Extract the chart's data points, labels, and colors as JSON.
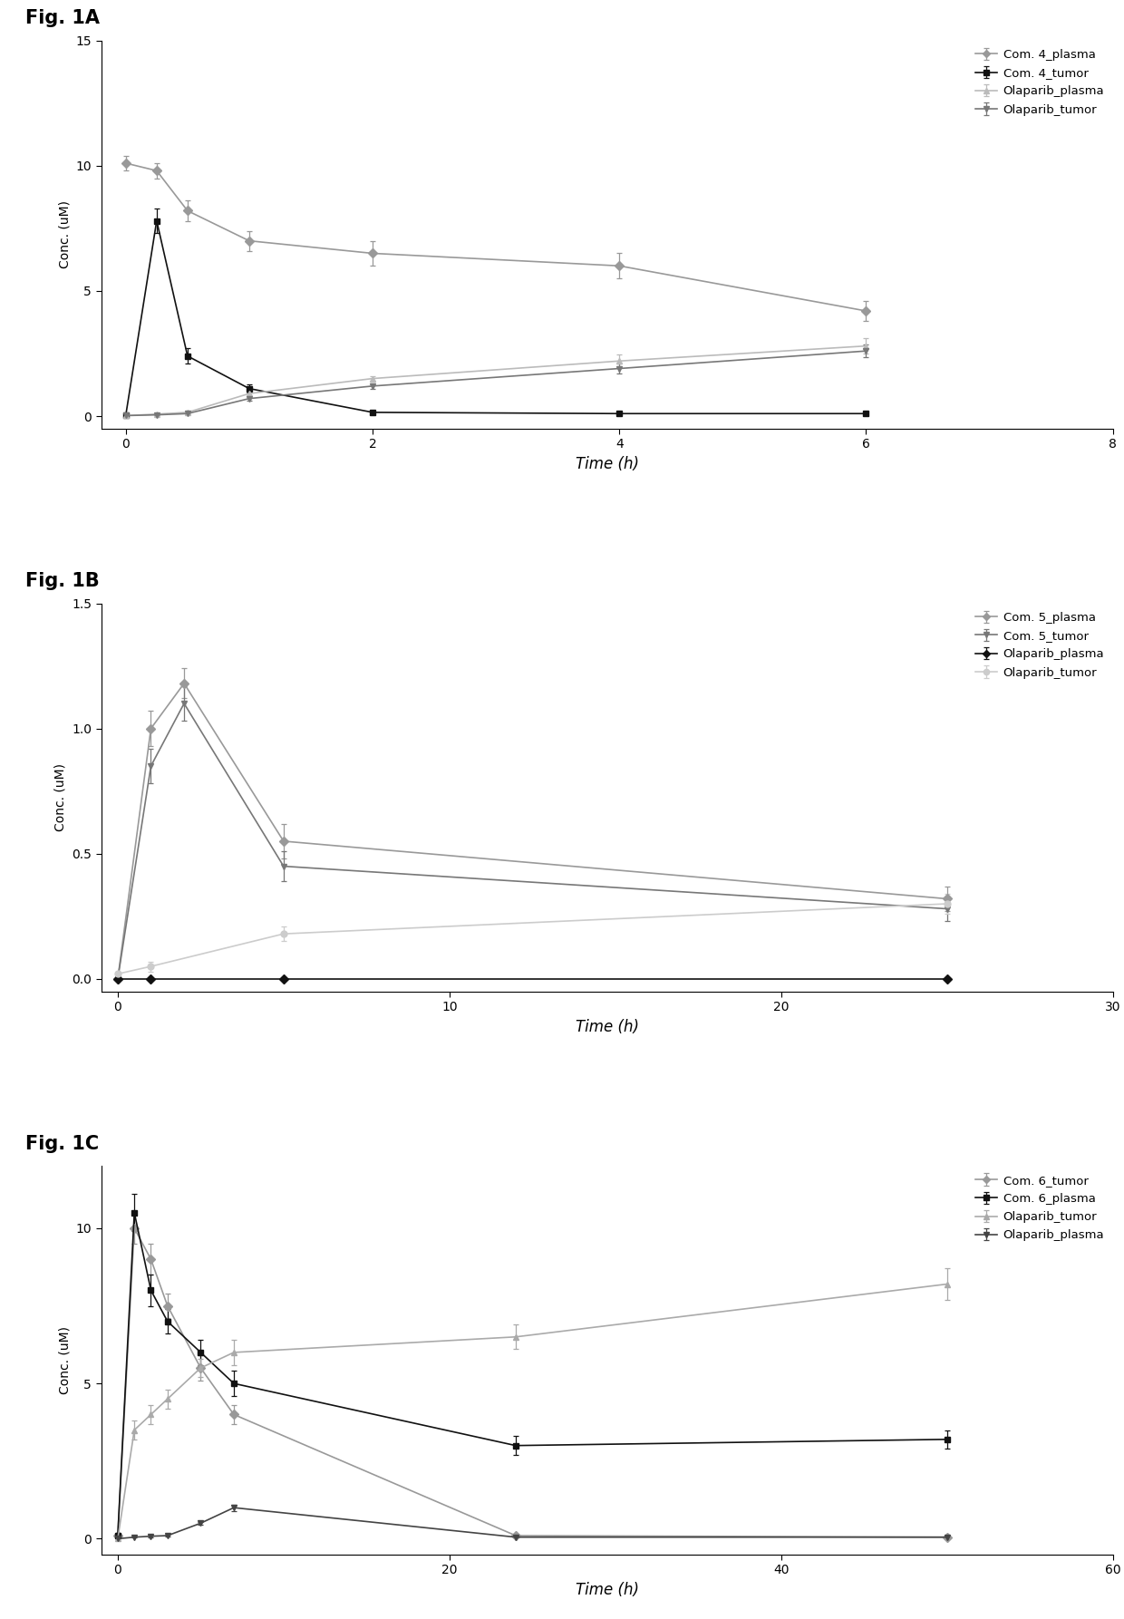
{
  "fig_labels": [
    "Fig. 1A",
    "Fig. 1B",
    "Fig. 1C"
  ],
  "panel_A": {
    "xlim": [
      -0.2,
      8
    ],
    "ylim": [
      -0.5,
      15
    ],
    "xticks": [
      0,
      2,
      4,
      6,
      8
    ],
    "yticks": [
      0,
      5,
      10,
      15
    ],
    "xlabel": "Time (h)",
    "ylabel": "Conc. (uM)",
    "series": [
      {
        "label": "Com. 4_plasma",
        "color": "#999999",
        "marker": "D",
        "markersize": 5,
        "x": [
          0.0,
          0.25,
          0.5,
          1.0,
          2.0,
          4.0,
          6.0
        ],
        "y": [
          10.1,
          9.8,
          8.2,
          7.0,
          6.5,
          6.0,
          4.2
        ],
        "yerr": [
          0.3,
          0.3,
          0.4,
          0.4,
          0.5,
          0.5,
          0.4
        ]
      },
      {
        "label": "Com. 4_tumor",
        "color": "#111111",
        "marker": "s",
        "markersize": 5,
        "x": [
          0.0,
          0.25,
          0.5,
          1.0,
          2.0,
          4.0,
          6.0
        ],
        "y": [
          0.05,
          7.8,
          2.4,
          1.1,
          0.15,
          0.1,
          0.1
        ],
        "yerr": [
          0.02,
          0.5,
          0.3,
          0.15,
          0.05,
          0.02,
          0.02
        ]
      },
      {
        "label": "Olaparib_plasma",
        "color": "#bbbbbb",
        "marker": "^",
        "markersize": 5,
        "x": [
          0.0,
          0.25,
          0.5,
          1.0,
          2.0,
          4.0,
          6.0
        ],
        "y": [
          0.02,
          0.08,
          0.15,
          0.9,
          1.5,
          2.2,
          2.8
        ],
        "yerr": [
          0.01,
          0.02,
          0.05,
          0.1,
          0.1,
          0.25,
          0.3
        ]
      },
      {
        "label": "Olaparib_tumor",
        "color": "#777777",
        "marker": "v",
        "markersize": 5,
        "x": [
          0.0,
          0.25,
          0.5,
          1.0,
          2.0,
          4.0,
          6.0
        ],
        "y": [
          0.02,
          0.05,
          0.1,
          0.7,
          1.2,
          1.9,
          2.6
        ],
        "yerr": [
          0.01,
          0.02,
          0.03,
          0.08,
          0.1,
          0.2,
          0.25
        ]
      }
    ]
  },
  "panel_B": {
    "xlim": [
      -0.5,
      30
    ],
    "ylim": [
      -0.05,
      1.5
    ],
    "xticks": [
      0,
      10,
      20,
      30
    ],
    "yticks": [
      0.0,
      0.5,
      1.0,
      1.5
    ],
    "xlabel": "Time (h)",
    "ylabel": "Conc. (uM)",
    "series": [
      {
        "label": "Com. 5_plasma",
        "color": "#999999",
        "marker": "D",
        "markersize": 5,
        "x": [
          0.0,
          1.0,
          2.0,
          5.0,
          25.0
        ],
        "y": [
          0.0,
          1.0,
          1.18,
          0.55,
          0.32
        ],
        "yerr": [
          0.0,
          0.07,
          0.06,
          0.07,
          0.05
        ]
      },
      {
        "label": "Com. 5_tumor",
        "color": "#777777",
        "marker": "v",
        "markersize": 5,
        "x": [
          0.0,
          1.0,
          2.0,
          5.0,
          25.0
        ],
        "y": [
          0.0,
          0.85,
          1.1,
          0.45,
          0.28
        ],
        "yerr": [
          0.0,
          0.07,
          0.07,
          0.06,
          0.05
        ]
      },
      {
        "label": "Olaparib_plasma",
        "color": "#111111",
        "marker": "D",
        "markersize": 5,
        "x": [
          0.0,
          1.0,
          5.0,
          25.0
        ],
        "y": [
          0.0,
          0.0,
          0.0,
          0.0
        ],
        "yerr": [
          0.0,
          0.0,
          0.0,
          0.0
        ]
      },
      {
        "label": "Olaparib_tumor",
        "color": "#cccccc",
        "marker": "o",
        "markersize": 5,
        "x": [
          0.0,
          1.0,
          5.0,
          25.0
        ],
        "y": [
          0.02,
          0.05,
          0.18,
          0.3
        ],
        "yerr": [
          0.01,
          0.02,
          0.03,
          0.04
        ]
      }
    ]
  },
  "panel_C": {
    "xlim": [
      -1,
      60
    ],
    "ylim": [
      -0.5,
      12
    ],
    "xticks": [
      0,
      20,
      40,
      60
    ],
    "yticks": [
      0,
      5,
      10
    ],
    "xlabel": "Time (h)",
    "ylabel": "Conc. (uM)",
    "series": [
      {
        "label": "Com. 6_tumor",
        "color": "#999999",
        "marker": "D",
        "markersize": 5,
        "x": [
          0.0,
          1.0,
          2.0,
          3.0,
          5.0,
          7.0,
          24.0,
          50.0
        ],
        "y": [
          0.1,
          10.0,
          9.0,
          7.5,
          5.5,
          4.0,
          0.1,
          0.05
        ],
        "yerr": [
          0.05,
          0.5,
          0.5,
          0.4,
          0.4,
          0.3,
          0.05,
          0.02
        ]
      },
      {
        "label": "Com. 6_plasma",
        "color": "#111111",
        "marker": "s",
        "markersize": 5,
        "x": [
          0.0,
          1.0,
          2.0,
          3.0,
          5.0,
          7.0,
          24.0,
          50.0
        ],
        "y": [
          0.1,
          10.5,
          8.0,
          7.0,
          6.0,
          5.0,
          3.0,
          3.2
        ],
        "yerr": [
          0.05,
          0.6,
          0.5,
          0.4,
          0.4,
          0.4,
          0.3,
          0.3
        ]
      },
      {
        "label": "Olaparib_tumor",
        "color": "#aaaaaa",
        "marker": "^",
        "markersize": 5,
        "x": [
          0.0,
          1.0,
          2.0,
          3.0,
          5.0,
          7.0,
          24.0,
          50.0
        ],
        "y": [
          0.0,
          3.5,
          4.0,
          4.5,
          5.5,
          6.0,
          6.5,
          8.2
        ],
        "yerr": [
          0.0,
          0.3,
          0.3,
          0.3,
          0.3,
          0.4,
          0.4,
          0.5
        ]
      },
      {
        "label": "Olaparib_plasma",
        "color": "#444444",
        "marker": "v",
        "markersize": 5,
        "x": [
          0.0,
          1.0,
          2.0,
          3.0,
          5.0,
          7.0,
          24.0,
          50.0
        ],
        "y": [
          0.0,
          0.05,
          0.08,
          0.1,
          0.5,
          1.0,
          0.05,
          0.05
        ],
        "yerr": [
          0.0,
          0.02,
          0.03,
          0.03,
          0.05,
          0.1,
          0.02,
          0.02
        ]
      }
    ]
  }
}
